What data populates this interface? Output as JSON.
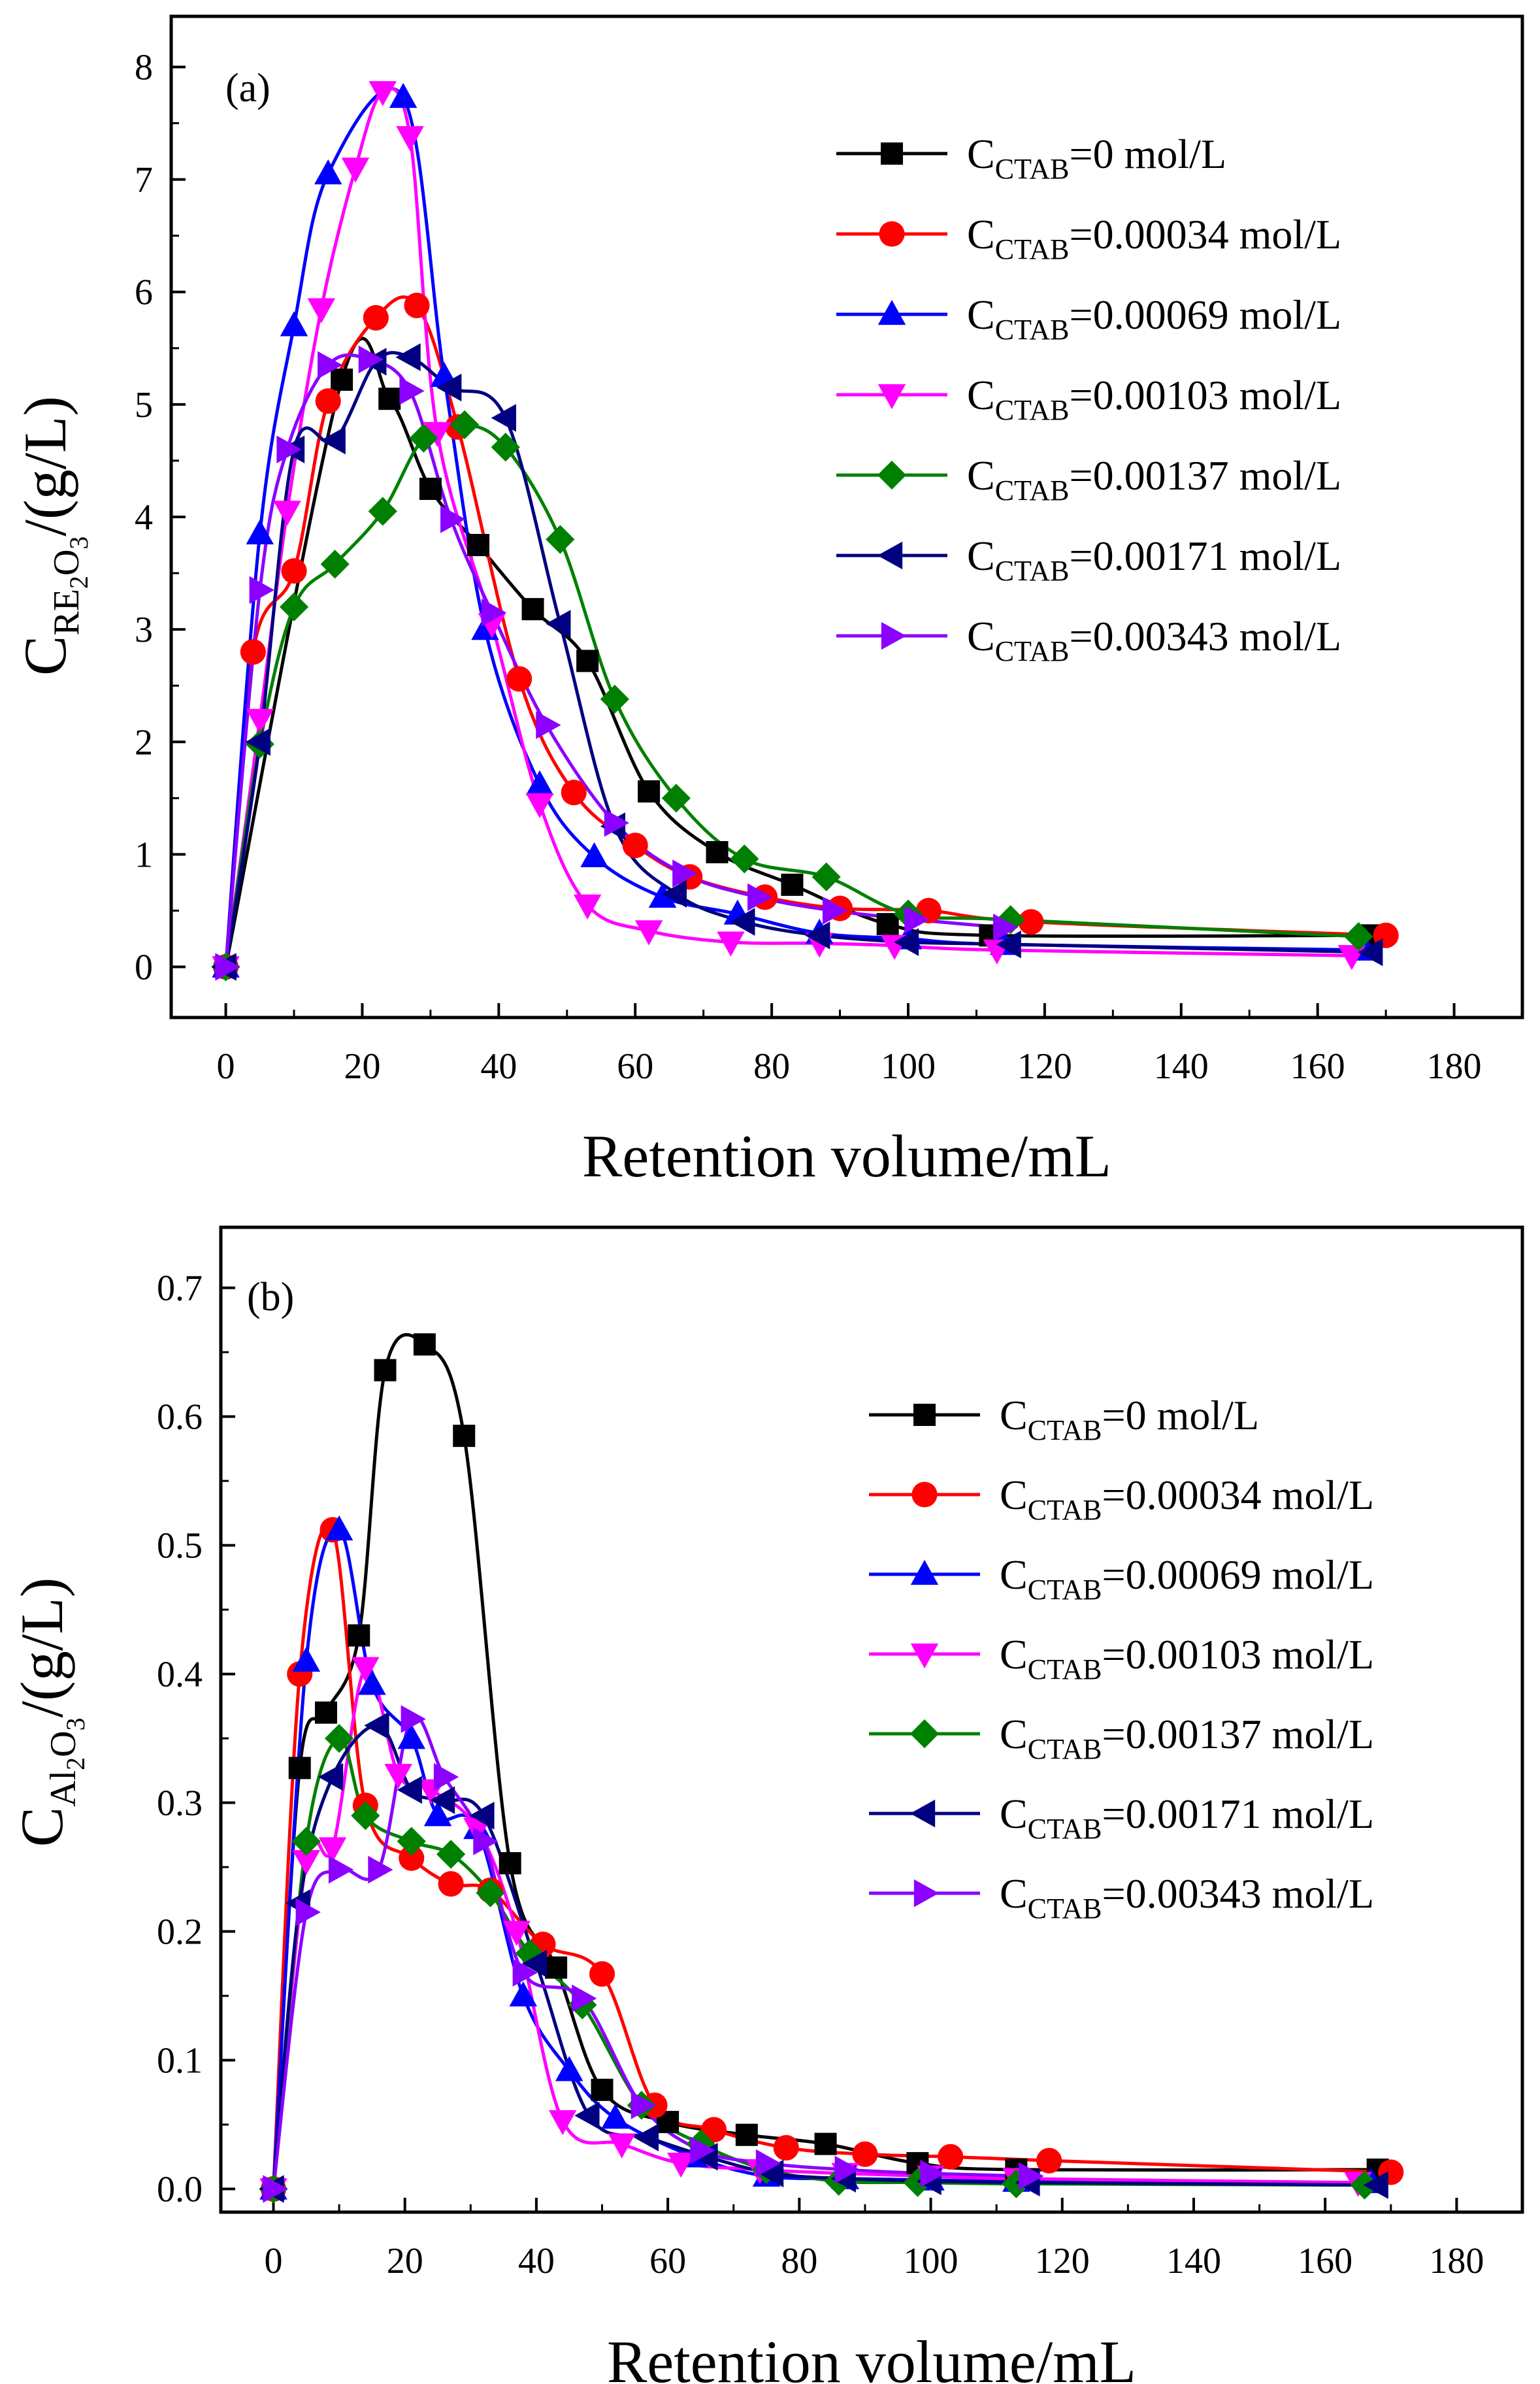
{
  "chart_data": [
    {
      "type": "line",
      "panel_label": "(a)",
      "xlabel": "Retention volume/mL",
      "ylabel": {
        "main": "C",
        "sub_a": "RE",
        "sub_b": "2",
        "sub_c": "O",
        "sub_d": "3",
        "unit": "/(g/L)"
      },
      "xlim": [
        -8,
        190
      ],
      "ylim": [
        -0.45,
        8.45
      ],
      "x_ticks": [
        0,
        20,
        40,
        60,
        80,
        100,
        120,
        140,
        160,
        180
      ],
      "y_ticks": [
        0,
        1,
        2,
        3,
        4,
        5,
        6,
        7,
        8
      ],
      "y_tick_labels": [
        "0",
        "1",
        "2",
        "3",
        "4",
        "5",
        "6",
        "7",
        "8"
      ],
      "legend_position": "top-right",
      "series": [
        {
          "name": "C_CTAB=0 mol/L",
          "legend_main": "C",
          "legend_sub": "CTAB",
          "legend_tail": "=0 mol/L",
          "color": "#000000",
          "marker": "square",
          "x": [
            0,
            17,
            24,
            30,
            37,
            45,
            53,
            62,
            72,
            83,
            97,
            112,
            168
          ],
          "y": [
            0,
            5.22,
            5.05,
            4.25,
            3.75,
            3.18,
            2.72,
            1.56,
            1.02,
            0.73,
            0.38,
            0.28,
            0.28
          ]
        },
        {
          "name": "C_CTAB=0.00034 mol/L",
          "legend_main": "C",
          "legend_sub": "CTAB",
          "legend_tail": "=0.00034 mol/L",
          "color": "#ff0000",
          "marker": "circle",
          "x": [
            0,
            4,
            10,
            15,
            22,
            28,
            34,
            43,
            51,
            60,
            68,
            79,
            90,
            103,
            118,
            170
          ],
          "y": [
            0,
            2.8,
            3.52,
            5.03,
            5.77,
            5.88,
            4.8,
            2.56,
            1.55,
            1.08,
            0.8,
            0.62,
            0.52,
            0.5,
            0.4,
            0.28
          ]
        },
        {
          "name": "C_CTAB=0.00069 mol/L",
          "legend_main": "C",
          "legend_sub": "CTAB",
          "legend_tail": "=0.00069 mol/L",
          "color": "#0000ff",
          "marker": "triangle-up",
          "x": [
            0,
            5,
            10,
            15,
            26,
            32,
            38,
            46,
            54,
            64,
            75,
            87,
            100,
            114,
            167
          ],
          "y": [
            0,
            3.85,
            5.7,
            7.05,
            7.73,
            5.25,
            3.0,
            1.62,
            0.98,
            0.62,
            0.47,
            0.3,
            0.25,
            0.2,
            0.15
          ]
        },
        {
          "name": "C_CTAB=0.00103 mol/L",
          "legend_main": "C",
          "legend_sub": "CTAB",
          "legend_tail": "=0.00103 mol/L",
          "color": "#ff00ff",
          "marker": "triangle-down",
          "x": [
            0,
            5,
            9,
            14,
            19,
            23,
            27,
            31,
            39,
            46,
            53,
            62,
            74,
            87,
            98,
            113,
            165
          ],
          "y": [
            0,
            2.2,
            4.05,
            5.85,
            7.1,
            7.78,
            7.38,
            4.75,
            3.05,
            1.45,
            0.55,
            0.32,
            0.22,
            0.21,
            0.19,
            0.15,
            0.1
          ]
        },
        {
          "name": "C_CTAB=0.00137 mol/L",
          "legend_main": "C",
          "legend_sub": "CTAB",
          "legend_tail": "=0.00137 mol/L",
          "color": "#008000",
          "marker": "diamond",
          "x": [
            0,
            5,
            10,
            16,
            23,
            29,
            35,
            41,
            49,
            57,
            66,
            76,
            88,
            100,
            115,
            166
          ],
          "y": [
            0,
            1.98,
            3.2,
            3.58,
            4.05,
            4.7,
            4.82,
            4.62,
            3.8,
            2.38,
            1.5,
            0.96,
            0.8,
            0.47,
            0.42,
            0.27
          ]
        },
        {
          "name": "C_CTAB=0.00171 mol/L",
          "legend_main": "C",
          "legend_sub": "CTAB",
          "legend_tail": "=0.00171 mol/L",
          "color": "#000080",
          "marker": "triangle-left",
          "x": [
            0,
            5,
            10,
            16,
            22,
            27,
            33,
            41,
            49,
            57,
            66,
            76,
            87,
            100,
            115,
            168
          ],
          "y": [
            0,
            2.0,
            4.6,
            4.68,
            5.38,
            5.42,
            5.15,
            4.88,
            3.05,
            1.25,
            0.65,
            0.4,
            0.28,
            0.22,
            0.2,
            0.13
          ]
        },
        {
          "name": "C_CTAB=0.00343 mol/L",
          "legend_main": "C",
          "legend_sub": "CTAB",
          "legend_tail": "=0.00343 mol/L",
          "color": "#8b00ff",
          "marker": "triangle-right",
          "x": [
            0,
            5,
            9,
            15,
            21,
            27,
            33,
            39,
            47,
            57,
            67,
            78,
            89,
            101,
            114
          ],
          "y": [
            0,
            3.35,
            4.6,
            5.35,
            5.4,
            5.12,
            3.98,
            3.15,
            2.15,
            1.28,
            0.83,
            0.62,
            0.5,
            0.42,
            0.35
          ]
        }
      ]
    },
    {
      "type": "line",
      "panel_label": "(b)",
      "xlabel": "Retention volume/mL",
      "ylabel": {
        "main": "C",
        "sub_a": "Al",
        "sub_b": "2",
        "sub_c": "O",
        "sub_d": "3",
        "unit": "/(g/L)"
      },
      "xlim": [
        -8,
        190
      ],
      "ylim": [
        -0.018,
        0.747
      ],
      "x_ticks": [
        0,
        20,
        40,
        60,
        80,
        100,
        120,
        140,
        160,
        180
      ],
      "y_ticks": [
        0,
        0.1,
        0.2,
        0.3,
        0.4,
        0.5,
        0.6,
        0.7
      ],
      "y_tick_labels": [
        "0.0",
        "0.1",
        "0.2",
        "0.3",
        "0.4",
        "0.5",
        "0.6",
        "0.7"
      ],
      "legend_position": "right",
      "series": [
        {
          "name": "C_CTAB=0 mol/L",
          "legend_main": "C",
          "legend_sub": "CTAB",
          "legend_tail": "=0 mol/L",
          "color": "#000000",
          "marker": "square",
          "x": [
            0,
            4,
            8,
            13,
            17,
            23,
            29,
            36,
            43,
            50,
            60,
            72,
            84,
            98,
            113,
            168
          ],
          "y": [
            0,
            0.327,
            0.37,
            0.43,
            0.636,
            0.656,
            0.585,
            0.253,
            0.172,
            0.077,
            0.052,
            0.042,
            0.035,
            0.02,
            0.015,
            0.015
          ]
        },
        {
          "name": "C_CTAB=0.00034 mol/L",
          "legend_main": "C",
          "legend_sub": "CTAB",
          "legend_tail": "=0.00034 mol/L",
          "color": "#ff0000",
          "marker": "circle",
          "x": [
            0,
            4,
            9,
            14,
            21,
            27,
            33,
            41,
            50,
            58,
            67,
            78,
            90,
            103,
            118,
            170
          ],
          "y": [
            0,
            0.4,
            0.512,
            0.298,
            0.257,
            0.237,
            0.232,
            0.19,
            0.167,
            0.065,
            0.046,
            0.032,
            0.027,
            0.025,
            0.022,
            0.013
          ]
        },
        {
          "name": "C_CTAB=0.00069 mol/L",
          "legend_main": "C",
          "legend_sub": "CTAB",
          "legend_tail": "=0.00069 mol/L",
          "color": "#0000ff",
          "marker": "triangle-up",
          "x": [
            0,
            5,
            10,
            15,
            21,
            25,
            31,
            38,
            45,
            52,
            64,
            75,
            87,
            100,
            113,
            167
          ],
          "y": [
            0,
            0.41,
            0.512,
            0.392,
            0.35,
            0.29,
            0.28,
            0.15,
            0.092,
            0.055,
            0.025,
            0.01,
            0.008,
            0.007,
            0.006,
            0.005
          ]
        },
        {
          "name": "C_CTAB=0.00103 mol/L",
          "legend_main": "C",
          "legend_sub": "CTAB",
          "legend_tail": "=0.00103 mol/L",
          "color": "#ff00ff",
          "marker": "triangle-down",
          "x": [
            0,
            5,
            9,
            14,
            19,
            24,
            31,
            37,
            44,
            53,
            62,
            74,
            87,
            100,
            113,
            165
          ],
          "y": [
            0,
            0.255,
            0.265,
            0.405,
            0.322,
            0.31,
            0.28,
            0.2,
            0.053,
            0.035,
            0.02,
            0.015,
            0.012,
            0.01,
            0.008,
            0.005
          ]
        },
        {
          "name": "C_CTAB=0.00137 mol/L",
          "legend_main": "C",
          "legend_sub": "CTAB",
          "legend_tail": "=0.00137 mol/L",
          "color": "#008000",
          "marker": "diamond",
          "x": [
            0,
            5,
            10,
            14,
            21,
            27,
            33,
            39,
            47,
            56,
            65,
            75,
            86,
            98,
            113,
            166
          ],
          "y": [
            0,
            0.27,
            0.35,
            0.29,
            0.27,
            0.26,
            0.23,
            0.183,
            0.143,
            0.065,
            0.035,
            0.015,
            0.006,
            0.005,
            0.004,
            0.003
          ]
        },
        {
          "name": "C_CTAB=0.00171 mol/L",
          "legend_main": "C",
          "legend_sub": "CTAB",
          "legend_tail": "=0.00171 mol/L",
          "color": "#000080",
          "marker": "triangle-left",
          "x": [
            0,
            4,
            9,
            16,
            21,
            26,
            32,
            40,
            48,
            57,
            66,
            76,
            87,
            100,
            115,
            168
          ],
          "y": [
            0,
            0.222,
            0.32,
            0.36,
            0.31,
            0.302,
            0.29,
            0.175,
            0.057,
            0.04,
            0.025,
            0.012,
            0.008,
            0.006,
            0.005,
            0.003
          ]
        },
        {
          "name": "C_CTAB=0.00343 mol/L",
          "legend_main": "C",
          "legend_sub": "CTAB",
          "legend_tail": "=0.00343 mol/L",
          "color": "#8b00ff",
          "marker": "triangle-right",
          "x": [
            0,
            5,
            10,
            16,
            21,
            26,
            32,
            38,
            47,
            56,
            65,
            75,
            87,
            100,
            115
          ],
          "y": [
            0,
            0.215,
            0.248,
            0.248,
            0.365,
            0.32,
            0.27,
            0.168,
            0.148,
            0.065,
            0.03,
            0.02,
            0.015,
            0.012,
            0.01
          ]
        }
      ]
    }
  ]
}
